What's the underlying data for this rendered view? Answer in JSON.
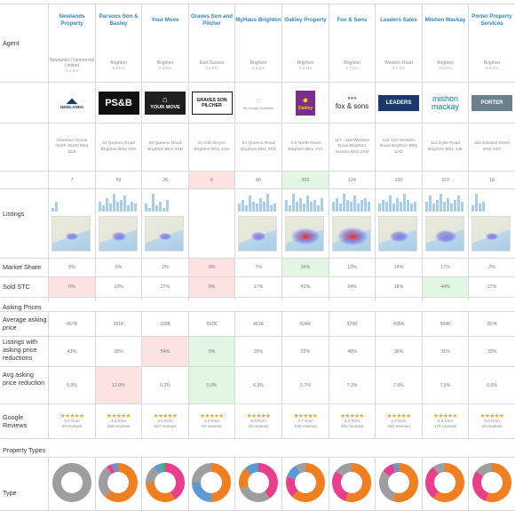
{
  "labels": {
    "agent": "Agent",
    "listings": "Listings",
    "market_share": "Market Share",
    "sold_stc": "Sold STC",
    "asking_prices": "Asking Prices",
    "avg_asking": "Average asking price",
    "reductions": "Listings with asking price reductions",
    "avg_reduction": "Avg asking price reduction",
    "google_reviews": "Google Reviews",
    "property_types": "Property Types",
    "type": "Type"
  },
  "agents": [
    {
      "name": "Newlands Property",
      "sub": "Newlands Commercial Limited",
      "dist": "0.1 km",
      "logo": {
        "text": "NEWLANDS",
        "bg": "#ffffff",
        "fg": "#1b3a63",
        "style": "newlands"
      },
      "address": "Clarence House North Street BN1 1EB",
      "listings": "7",
      "listings_hl": "",
      "bars": [
        0.2,
        0.5
      ],
      "map": {
        "show": true,
        "heat": 0.2
      },
      "market_share": "0%",
      "ms_hl": "",
      "sold_stc": "0%",
      "stc_hl": "red",
      "avg_price": "457K",
      "price_hl": "",
      "reductions": "43%",
      "red_hl": "",
      "avg_reduction": "5.9%",
      "avgred_hl": "",
      "stars": "★★★★★",
      "reviews_line1": "5.0 from",
      "reviews_line2": "29 reviews",
      "donut": [
        {
          "v": 1.0,
          "c": "#9e9e9e"
        }
      ]
    },
    {
      "name": "Parsons Son & Basley",
      "sub": "Brighton",
      "dist": "0.3 km",
      "logo": {
        "text": "PS&B",
        "bg": "#111111",
        "fg": "#ffffff",
        "style": "psb"
      },
      "address": "32 Queens Road Brighton BN1 3YE",
      "listings": "53",
      "listings_hl": "",
      "bars": [
        0.5,
        0.3,
        0.7,
        0.4,
        0.9,
        0.5,
        0.6,
        0.8,
        0.3,
        0.5,
        0.4
      ],
      "map": {
        "show": true,
        "heat": 0.3
      },
      "market_share": "5%",
      "ms_hl": "",
      "sold_stc": "13%",
      "stc_hl": "",
      "avg_price": "291K",
      "price_hl": "",
      "reductions": "28%",
      "red_hl": "",
      "avg_reduction": "12.0%",
      "avgred_hl": "red",
      "stars": "★★★★★",
      "reviews_line1": "4.5 from",
      "reviews_line2": "255 reviews",
      "donut": [
        {
          "v": 0.62,
          "c": "#f07f22"
        },
        {
          "v": 0.28,
          "c": "#9e9e9e"
        },
        {
          "v": 0.05,
          "c": "#e83e8c"
        },
        {
          "v": 0.05,
          "c": "#5b9bd5"
        }
      ]
    },
    {
      "name": "Your Move",
      "sub": "Brighton",
      "dist": "0.3 km",
      "logo": {
        "text": "YOUR MOVE",
        "bg": "#1f1f1f",
        "fg": "#ffffff",
        "style": "yourmove"
      },
      "address": "38 Queens Road Brighton BN1 3XB",
      "listings": "26",
      "listings_hl": "",
      "bars": [
        0.4,
        0.2,
        0.9,
        0.3,
        0.5,
        0.2,
        0.6
      ],
      "map": {
        "show": true,
        "heat": 0.25
      },
      "market_share": "2%",
      "ms_hl": "",
      "sold_stc": "27%",
      "stc_hl": "",
      "avg_price": "329K",
      "price_hl": "",
      "reductions": "54%",
      "red_hl": "red",
      "avg_reduction": "6.2%",
      "avgred_hl": "",
      "stars": "★★★★★",
      "reviews_line1": "4.5 from",
      "reviews_line2": "167 reviews",
      "donut": [
        {
          "v": 0.42,
          "c": "#e83e8c"
        },
        {
          "v": 0.33,
          "c": "#f07f22"
        },
        {
          "v": 0.15,
          "c": "#9e9e9e"
        },
        {
          "v": 0.06,
          "c": "#5b9bd5"
        },
        {
          "v": 0.04,
          "c": "#3cb371"
        }
      ]
    },
    {
      "name": "Graves Son and Pilcher",
      "sub": "East Sussex",
      "dist": "0.5 km",
      "logo": {
        "text": "GRAVES SON PILCHER",
        "bg": "#ffffff",
        "fg": "#111111",
        "style": "graves"
      },
      "address": "51 Old Steyne Brighton BN1 1HU",
      "listings": "6",
      "listings_hl": "red",
      "bars": [],
      "map": {
        "show": false,
        "heat": 0
      },
      "market_share": "0%",
      "ms_hl": "red",
      "sold_stc": "0%",
      "stc_hl": "red",
      "avg_price": "692K",
      "price_hl": "",
      "reductions": "0%",
      "red_hl": "green",
      "avg_reduction": "0.0%",
      "avgred_hl": "green",
      "stars": "★★★★★",
      "reviews_line1": "4.4 from",
      "reviews_line2": "62 reviews",
      "donut": [
        {
          "v": 0.5,
          "c": "#f07f22"
        },
        {
          "v": 0.25,
          "c": "#5b9bd5"
        },
        {
          "v": 0.25,
          "c": "#9e9e9e"
        }
      ]
    },
    {
      "name": "MyHaus Brighton",
      "sub": "Brighton",
      "dist": "0.5 km",
      "logo": {
        "text": "No Image Available",
        "bg": "#ffffff",
        "fg": "#888888",
        "style": "noimage"
      },
      "address": "64 Queens Road Brighton BN1 3XD",
      "listings": "66",
      "listings_hl": "",
      "bars": [
        0.4,
        0.6,
        0.3,
        0.8,
        0.5,
        0.4,
        0.7,
        0.5,
        0.9,
        0.3,
        0.4
      ],
      "map": {
        "show": true,
        "heat": 0.3
      },
      "market_share": "7%",
      "ms_hl": "",
      "sold_stc": "17%",
      "stc_hl": "",
      "avg_price": "451K",
      "price_hl": "",
      "reductions": "26%",
      "red_hl": "",
      "avg_reduction": "6.3%",
      "avgred_hl": "",
      "stars": "★★★★★",
      "reviews_line1": "5.0 from",
      "reviews_line2": "33 reviews",
      "donut": [
        {
          "v": 0.4,
          "c": "#e83e8c"
        },
        {
          "v": 0.3,
          "c": "#9e9e9e"
        },
        {
          "v": 0.18,
          "c": "#f07f22"
        },
        {
          "v": 0.12,
          "c": "#5b9bd5"
        }
      ]
    },
    {
      "name": "Oakley Property",
      "sub": "Brighton",
      "dist": "0.5 km",
      "logo": {
        "text": "Oakley",
        "bg": "#7b2d8e",
        "fg": "#f5d300",
        "style": "oakley"
      },
      "address": "3-6 North Road Brighton BN1 1YA",
      "listings": "303",
      "listings_hl": "green",
      "bars": [
        0.6,
        0.3,
        0.9,
        0.5,
        0.7,
        0.4,
        0.8,
        0.5,
        0.6,
        0.3,
        0.7
      ],
      "map": {
        "show": true,
        "heat": 0.9
      },
      "market_share": "34%",
      "ms_hl": "green",
      "sold_stc": "42%",
      "stc_hl": "",
      "avg_price": "634K",
      "price_hl": "",
      "reductions": "22%",
      "red_hl": "",
      "avg_reduction": "5.7%",
      "avgred_hl": "",
      "stars": "★★★★★",
      "reviews_line1": "4.7 from",
      "reviews_line2": "138 reviews",
      "donut": [
        {
          "v": 0.62,
          "c": "#f07f22"
        },
        {
          "v": 0.18,
          "c": "#e83e8c"
        },
        {
          "v": 0.12,
          "c": "#5b9bd5"
        },
        {
          "v": 0.08,
          "c": "#9e9e9e"
        }
      ]
    },
    {
      "name": "Fox & Sons",
      "sub": "Brighton",
      "dist": "0.7 km",
      "logo": {
        "text": "fox & sons",
        "bg": "#ffffff",
        "fg": "#222222",
        "style": "fox"
      },
      "address": "117 - 118 Western Road Brighton Sussex BN1 2AD",
      "listings": "124",
      "listings_hl": "",
      "bars": [
        0.5,
        0.7,
        0.4,
        0.9,
        0.6,
        0.5,
        0.8,
        0.4,
        0.6,
        0.7,
        0.5
      ],
      "map": {
        "show": true,
        "heat": 1.0
      },
      "market_share": "13%",
      "ms_hl": "",
      "sold_stc": "24%",
      "stc_hl": "",
      "avg_price": "376K",
      "price_hl": "",
      "reductions": "49%",
      "red_hl": "",
      "avg_reduction": "7.3%",
      "avgred_hl": "",
      "stars": "★★★★★",
      "reviews_line1": "4.4 from",
      "reviews_line2": "202 reviews",
      "donut": [
        {
          "v": 0.55,
          "c": "#f07f22"
        },
        {
          "v": 0.3,
          "c": "#e83e8c"
        },
        {
          "v": 0.15,
          "c": "#9e9e9e"
        }
      ]
    },
    {
      "name": "Leaders Sales",
      "sub": "Western Road",
      "dist": "0.7 km",
      "logo": {
        "text": "LEADERS",
        "bg": "#1b3a6b",
        "fg": "#ffffff",
        "style": "leaders"
      },
      "address": "119-120 Western Road Brighton BN1 2AD",
      "listings": "130",
      "listings_hl": "",
      "bars": [
        0.4,
        0.6,
        0.5,
        0.8,
        0.4,
        0.7,
        0.5,
        0.9,
        0.6,
        0.4,
        0.5
      ],
      "map": {
        "show": true,
        "heat": 0.5
      },
      "market_share": "14%",
      "ms_hl": "",
      "sold_stc": "18%",
      "stc_hl": "",
      "avg_price": "435K",
      "price_hl": "",
      "reductions": "36%",
      "red_hl": "",
      "avg_reduction": "7.5%",
      "avgred_hl": "",
      "stars": "★★★★★",
      "reviews_line1": "4.7 from",
      "reviews_line2": "340 reviews",
      "donut": [
        {
          "v": 0.55,
          "c": "#f07f22"
        },
        {
          "v": 0.3,
          "c": "#9e9e9e"
        },
        {
          "v": 0.1,
          "c": "#e83e8c"
        },
        {
          "v": 0.05,
          "c": "#5b9bd5"
        }
      ]
    },
    {
      "name": "Mishon Mackay",
      "sub": "Brighton",
      "dist": "0.8 km",
      "logo": {
        "text": "mishon mackay",
        "bg": "#ffffff",
        "fg": "#0d7f9c",
        "style": "mishon"
      },
      "address": "111 Dyke Road Brighton BN1 3JE",
      "listings": "153",
      "listings_hl": "",
      "bars": [
        0.5,
        0.8,
        0.4,
        0.6,
        0.9,
        0.5,
        0.7,
        0.4,
        0.6,
        0.8,
        0.5
      ],
      "map": {
        "show": true,
        "heat": 0.6
      },
      "market_share": "17%",
      "ms_hl": "",
      "sold_stc": "44%",
      "stc_hl": "green",
      "avg_price": "504K",
      "price_hl": "",
      "reductions": "31%",
      "red_hl": "",
      "avg_reduction": "7.9%",
      "avgred_hl": "",
      "stars": "★★★★★",
      "reviews_line1": "4.5 from",
      "reviews_line2": "174 reviews",
      "donut": [
        {
          "v": 0.6,
          "c": "#f07f22"
        },
        {
          "v": 0.3,
          "c": "#e83e8c"
        },
        {
          "v": 0.1,
          "c": "#9e9e9e"
        }
      ]
    },
    {
      "name": "Porter Property Services",
      "sub": "Brighton",
      "dist": "0.8 km",
      "logo": {
        "text": "PORTER",
        "bg": "#6b7f8c",
        "fg": "#ffffff",
        "style": "porter"
      },
      "address": "152 Edward Street BN2 0JG",
      "listings": "18",
      "listings_hl": "",
      "bars": [
        0.3,
        0.9,
        0.4,
        0.5
      ],
      "map": {
        "show": true,
        "heat": 0.2
      },
      "market_share": "2%",
      "ms_hl": "",
      "sold_stc": "17%",
      "stc_hl": "",
      "avg_price": "397K",
      "price_hl": "",
      "reductions": "33%",
      "red_hl": "",
      "avg_reduction": "6.6%",
      "avgred_hl": "",
      "stars": "★★★★★",
      "reviews_line1": "4.0 from",
      "reviews_line2": "16 reviews",
      "donut": [
        {
          "v": 0.55,
          "c": "#f07f22"
        },
        {
          "v": 0.3,
          "c": "#e83e8c"
        },
        {
          "v": 0.15,
          "c": "#9e9e9e"
        }
      ]
    }
  ]
}
